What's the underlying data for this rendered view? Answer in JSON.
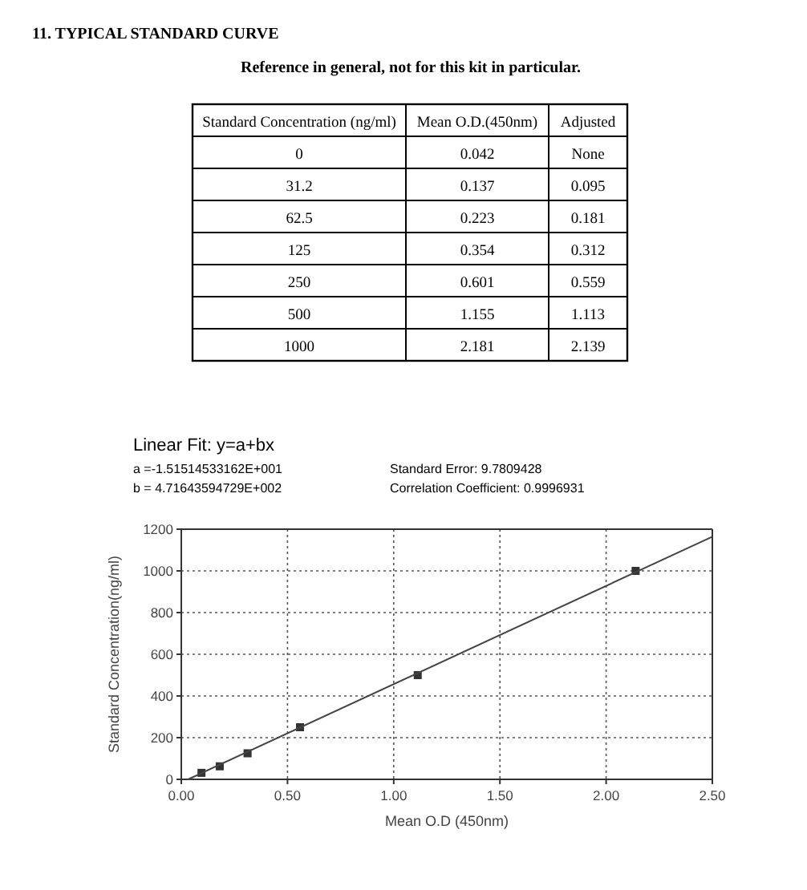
{
  "chart_data": [
    {
      "type": "other",
      "title": "11. TYPICAL STANDARD CURVE",
      "subtitle": "Reference in general, not for this kit in particular.",
      "annotations": [
        "Standard Concentration (ng/ml)",
        "Mean O.D.(450nm)",
        "Adjusted",
        "0",
        "0.042",
        "None",
        "31.2",
        "0.137",
        "0.095",
        "62.5",
        "0.223",
        "0.181",
        "125",
        "0.354",
        "0.312",
        "250",
        "0.601",
        "0.559",
        "500",
        "1.155",
        "1.113",
        "1000",
        "2.181",
        "2.139"
      ]
    },
    {
      "type": "scatter",
      "title": "Linear Fit: y=a+bx",
      "annotations": [
        "a =-1.51514533162E+001",
        "b = 4.71643594729E+002",
        "Standard Error: 9.7809428",
        "Correlation Coefficient: 0.9996931"
      ],
      "xlabel": "Mean O.D (450nm)",
      "ylabel": "Standard Concentration(ng/ml)",
      "xlim": [
        0,
        2.5
      ],
      "ylim": [
        0,
        1200
      ],
      "xticks": [
        {
          "value": 0,
          "label": "0.00"
        },
        {
          "value": 0.5,
          "label": "0.50"
        },
        {
          "value": 1,
          "label": "1.00"
        },
        {
          "value": 1.5,
          "label": "1.50"
        },
        {
          "value": 2,
          "label": "2.00"
        },
        {
          "value": 2.5,
          "label": "2.50"
        }
      ],
      "yticks": [
        0,
        200,
        400,
        600,
        800,
        1000,
        1200
      ],
      "grid": true,
      "series": [
        {
          "type": "scatter",
          "marker": "square",
          "color": "#333333",
          "x": [
            0.095,
            0.181,
            0.312,
            0.559,
            1.113,
            2.139
          ],
          "values": [
            31.2,
            62.5,
            125,
            250,
            500,
            1000
          ]
        },
        {
          "type": "line",
          "marker": "none",
          "color": "#444444",
          "x": [
            0.032,
            2.5
          ],
          "values": [
            0,
            1164
          ]
        }
      ]
    }
  ]
}
